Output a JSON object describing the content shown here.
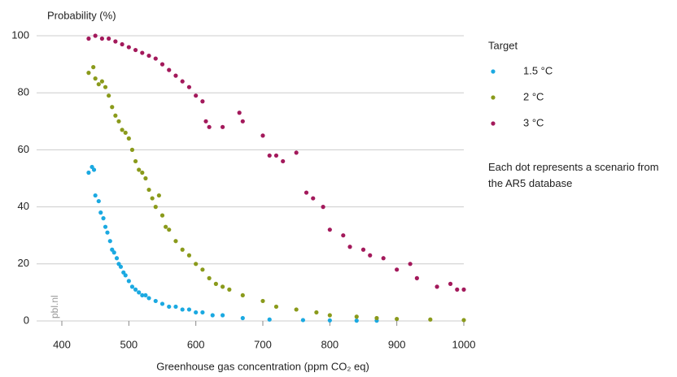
{
  "chart_data": {
    "type": "scatter",
    "y_label": "Probability (%)",
    "x_label": "Greenhouse gas concentration (ppm CO₂ eq)",
    "legend_title": "Target",
    "annotation": "Each dot represents a scenario from the AR5 database",
    "watermark": "pbl.nl",
    "xlim": [
      400,
      1000
    ],
    "xticks": [
      400,
      500,
      600,
      700,
      800,
      900,
      1000
    ],
    "ylim": [
      0,
      100
    ],
    "yticks": [
      0,
      20,
      40,
      60,
      80,
      100
    ],
    "grid": true,
    "series": [
      {
        "name": "1.5 °C",
        "color": "#1ba9e1",
        "x": [
          440,
          445,
          448,
          450,
          455,
          458,
          462,
          465,
          468,
          472,
          475,
          478,
          482,
          485,
          488,
          492,
          495,
          500,
          505,
          510,
          515,
          520,
          525,
          530,
          540,
          550,
          560,
          570,
          580,
          590,
          600,
          610,
          625,
          640,
          670,
          710,
          760,
          800,
          840,
          870
        ],
        "values": [
          52,
          54,
          53,
          44,
          42,
          38,
          36,
          33,
          31,
          28,
          25,
          24,
          22,
          20,
          19,
          17,
          16,
          14,
          12,
          11,
          10,
          9,
          9,
          8,
          7,
          6,
          5,
          5,
          4,
          4,
          3,
          3,
          2,
          2,
          1,
          0.5,
          0.3,
          0.2,
          0.1,
          0.1
        ]
      },
      {
        "name": "2 °C",
        "color": "#8a9a1b",
        "x": [
          440,
          447,
          450,
          455,
          460,
          465,
          470,
          475,
          480,
          485,
          490,
          495,
          500,
          505,
          510,
          515,
          520,
          525,
          530,
          535,
          540,
          545,
          550,
          555,
          560,
          570,
          580,
          590,
          600,
          610,
          620,
          630,
          640,
          650,
          670,
          700,
          720,
          750,
          780,
          800,
          840,
          870,
          900,
          950,
          1000
        ],
        "values": [
          87,
          89,
          85,
          83,
          84,
          82,
          79,
          75,
          72,
          70,
          67,
          66,
          64,
          60,
          56,
          53,
          52,
          50,
          46,
          43,
          40,
          44,
          37,
          33,
          32,
          28,
          25,
          23,
          20,
          18,
          15,
          13,
          12,
          11,
          9,
          7,
          5,
          4,
          3,
          2,
          1.5,
          1,
          0.7,
          0.5,
          0.3
        ]
      },
      {
        "name": "3 °C",
        "color": "#a3195b",
        "x": [
          440,
          450,
          460,
          470,
          480,
          490,
          500,
          510,
          520,
          530,
          540,
          550,
          560,
          570,
          580,
          590,
          600,
          610,
          615,
          620,
          640,
          665,
          670,
          700,
          710,
          720,
          730,
          750,
          765,
          775,
          790,
          800,
          820,
          830,
          850,
          860,
          880,
          900,
          920,
          930,
          960,
          980,
          990,
          1000
        ],
        "values": [
          99,
          100,
          99,
          99,
          98,
          97,
          96,
          95,
          94,
          93,
          92,
          90,
          88,
          86,
          84,
          82,
          79,
          77,
          70,
          68,
          68,
          73,
          70,
          65,
          58,
          58,
          56,
          59,
          45,
          43,
          40,
          32,
          30,
          26,
          25,
          23,
          22,
          18,
          20,
          15,
          12,
          13,
          11,
          11
        ]
      }
    ]
  }
}
